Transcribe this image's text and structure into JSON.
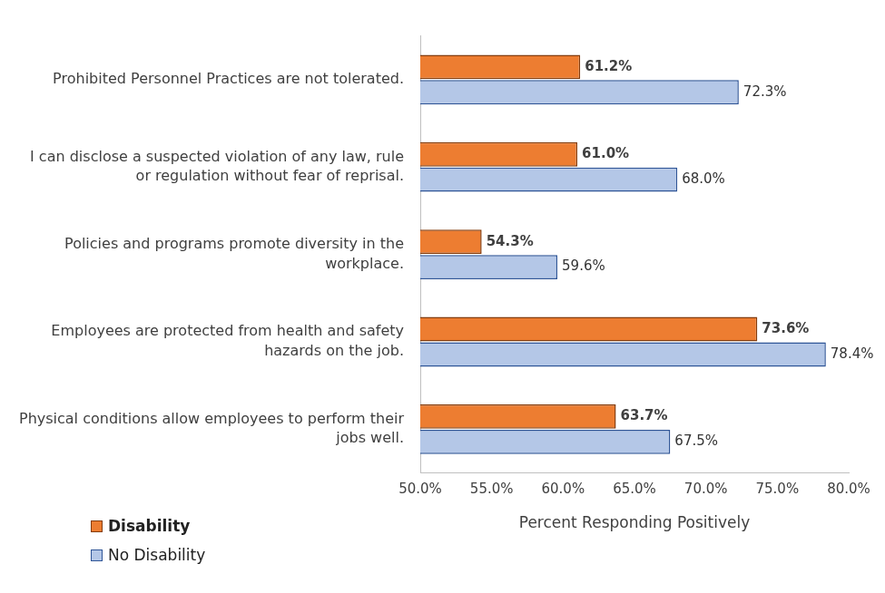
{
  "chart_data": {
    "type": "bar",
    "orientation": "horizontal",
    "categories": [
      "Prohibited Personnel Practices are not tolerated.",
      "I can disclose a suspected violation of any law, rule or regulation without fear of reprisal.",
      "Policies and programs promote diversity in the workplace.",
      "Employees are protected from health and safety hazards on the job.",
      "Physical conditions allow employees to perform their jobs well."
    ],
    "series": [
      {
        "name": "Disability",
        "color": "#ED7D31",
        "values": [
          61.2,
          61.0,
          54.3,
          73.6,
          63.7
        ],
        "value_labels": [
          "61.2%",
          "61.0%",
          "54.3%",
          "73.6%",
          "63.7%"
        ]
      },
      {
        "name": "No Disability",
        "color": "#B4C7E7",
        "values": [
          72.3,
          68.0,
          59.6,
          78.4,
          67.5
        ],
        "value_labels": [
          "72.3%",
          "68.0%",
          "59.6%",
          "78.4%",
          "67.5%"
        ]
      }
    ],
    "xlabel": "Percent Responding Positively",
    "xlim": [
      50,
      80
    ],
    "xticks": [
      {
        "value": 50,
        "label": "50.0%"
      },
      {
        "value": 55,
        "label": "55.0%"
      },
      {
        "value": 60,
        "label": "60.0%"
      },
      {
        "value": 65,
        "label": "65.0%"
      },
      {
        "value": 70,
        "label": "70.0%"
      },
      {
        "value": 75,
        "label": "75.0%"
      },
      {
        "value": 80,
        "label": "80.0%"
      }
    ],
    "grid": false,
    "legend": "bottom left",
    "data_labels": true
  }
}
